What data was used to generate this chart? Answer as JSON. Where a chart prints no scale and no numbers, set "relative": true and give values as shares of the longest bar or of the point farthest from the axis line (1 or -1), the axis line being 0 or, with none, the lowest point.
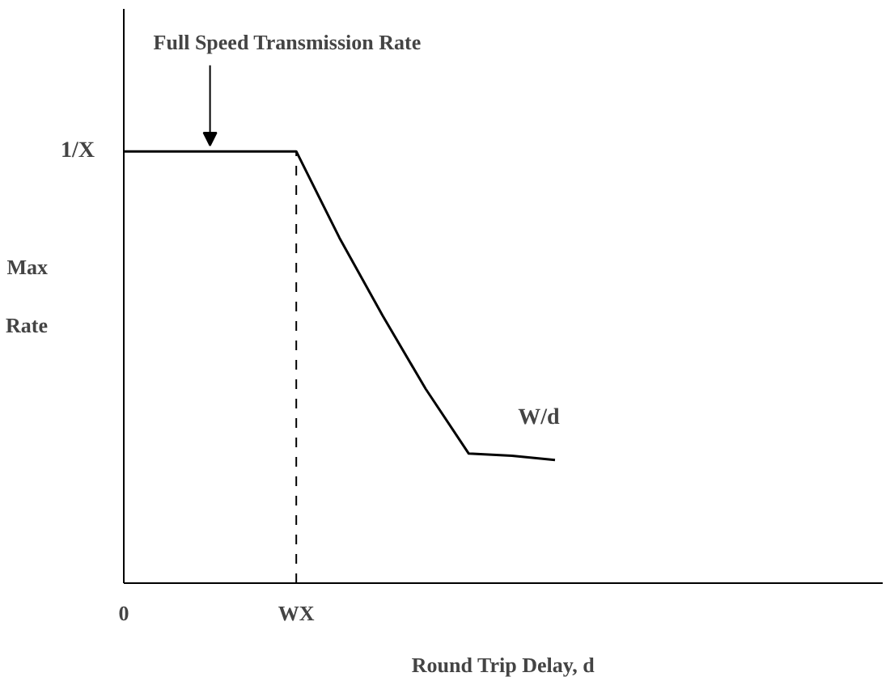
{
  "chart_data": {
    "type": "line",
    "relative": true,
    "xlabel": "Round Trip Delay, d",
    "ylabel": "Max Rate",
    "categories": [
      "0",
      null,
      null,
      null,
      "WX",
      null,
      null,
      null,
      null,
      null,
      null
    ],
    "series": [
      {
        "color": "#000000",
        "values": [
          1,
          1,
          1,
          1,
          1,
          0.8,
          0.62,
          0.45,
          0.3,
          0.295,
          0.285
        ]
      }
    ],
    "ref_lines": [
      {
        "axis": "x",
        "value": "WX",
        "line_style": "dashed",
        "color": "#000000"
      }
    ],
    "annotations": [
      "Full Speed Transmission Rate",
      "1/X",
      {
        "text": "W/d",
        "y": 0.285
      }
    ],
    "grid": false,
    "marker": "none",
    "line_style": "solid"
  }
}
